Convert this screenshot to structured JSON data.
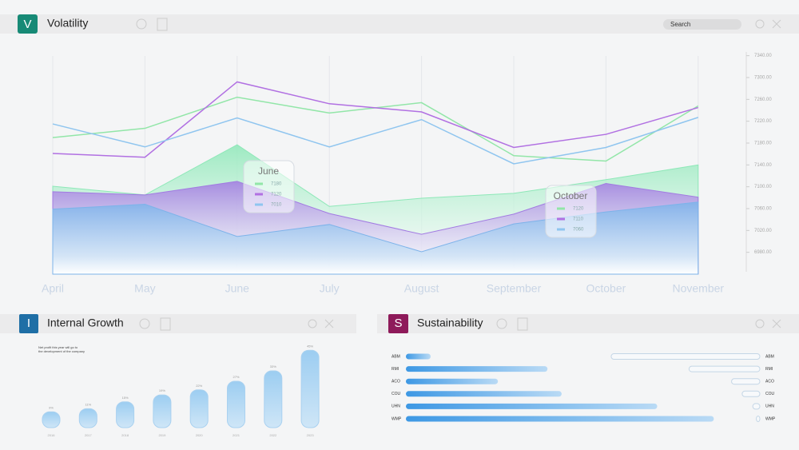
{
  "volatility": {
    "header": {
      "icon": "V",
      "title": "Volatility",
      "search": "Search"
    },
    "chart_data": {
      "type": "line",
      "categories": [
        "April",
        "May",
        "June",
        "July",
        "August",
        "September",
        "October",
        "November"
      ],
      "ylim": [
        6940,
        7360
      ],
      "yticks": [
        {
          "value": 7340,
          "label": "7340.00"
        },
        {
          "value": 7300,
          "label": "7300.00"
        },
        {
          "value": 7260,
          "label": "7260.00"
        },
        {
          "value": 7220,
          "label": "7220.00"
        },
        {
          "value": 7180,
          "label": "7180.00"
        },
        {
          "value": 7140,
          "label": "7140.00"
        },
        {
          "value": 7100,
          "label": "7100.00"
        },
        {
          "value": 7060,
          "label": "7060.00"
        },
        {
          "value": 7020,
          "label": "7020.00"
        },
        {
          "value": 6980,
          "label": "6980.00"
        }
      ],
      "grid": true,
      "series": [
        {
          "style": "area",
          "color": "#8ee8b8",
          "values": [
            7101,
            7085,
            7177,
            7064,
            7079,
            7088,
            7113,
            7140
          ]
        },
        {
          "style": "area",
          "color": "#a27ae2",
          "values": [
            7091,
            7085,
            7110,
            7051,
            7013,
            7050,
            7106,
            7081
          ]
        },
        {
          "style": "area",
          "color": "#7db3ea",
          "values": [
            7059,
            7068,
            7009,
            7031,
            6981,
            7032,
            7054,
            7072
          ]
        },
        {
          "style": "line",
          "color": "#92e6a8",
          "values": [
            7190,
            7207,
            7264,
            7235,
            7254,
            7157,
            7147,
            7248
          ]
        },
        {
          "style": "line",
          "color": "#b170e2",
          "values": [
            7161,
            7154,
            7292,
            7252,
            7237,
            7172,
            7196,
            7245
          ]
        },
        {
          "style": "line",
          "color": "#8fc5ef",
          "values": [
            7215,
            7173,
            7226,
            7173,
            7223,
            7142,
            7172,
            7227
          ]
        }
      ],
      "tooltips": [
        {
          "title": "June",
          "colors": [
            "#92e6a8",
            "#b170e2",
            "#8fc5ef"
          ],
          "values": [
            7180,
            7120,
            7010
          ]
        },
        {
          "title": "October",
          "colors": [
            "#92e6a8",
            "#b170e2",
            "#8fc5ef"
          ],
          "values": [
            7120,
            7110,
            7060
          ]
        }
      ]
    }
  },
  "growth": {
    "header": {
      "icon": "I",
      "title": "Internal Growth"
    },
    "chart_data": {
      "type": "bar",
      "note": [
        "Net profit this year will go to",
        "the development of the company"
      ],
      "categories": [
        "2016",
        "2017",
        "2018",
        "2019",
        "2020",
        "2021",
        "2022",
        "2023"
      ],
      "values": [
        9,
        11,
        15,
        19,
        22,
        27,
        33,
        45
      ],
      "value_labels": [
        "9%",
        "11%",
        "15%",
        "19%",
        "22%",
        "27%",
        "33%",
        "45%"
      ],
      "color": "#8ec3ee"
    }
  },
  "sustainability": {
    "header": {
      "icon": "S",
      "title": "Sustainability"
    },
    "chart_data": {
      "type": "hbar",
      "categories": [
        "ABM",
        "RMI",
        "ACO",
        "COU",
        "UHN",
        "WMP"
      ],
      "series": [
        {
          "color": "#4a9fe6",
          "values": [
            7,
            40,
            26,
            44,
            71,
            87
          ]
        },
        {
          "color": "#c4d6e6",
          "values": [
            42,
            20,
            8,
            5,
            2,
            1
          ]
        }
      ]
    }
  }
}
